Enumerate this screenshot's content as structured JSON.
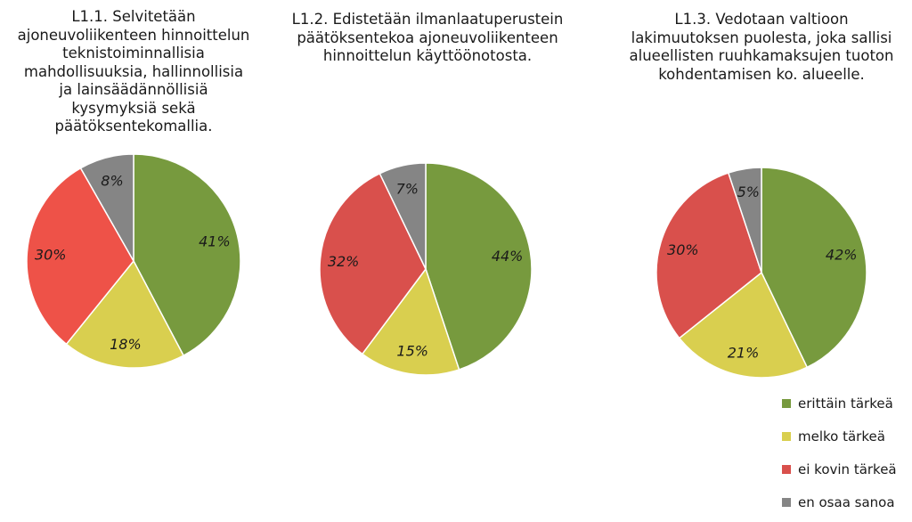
{
  "colors": {
    "erittain_tarkea": "#779a3e",
    "melko_tarkea": "#d9cf4f",
    "ei_kovin_tarkea": "#d9504c",
    "en_osaa_sanoa": "#858585",
    "ei_kovin_tarkea_chart1": "#ee5248"
  },
  "legend": [
    {
      "label": "erittäin tärkeä",
      "color": "#779a3e"
    },
    {
      "label": "melko tärkeä",
      "color": "#d9cf4f"
    },
    {
      "label": "ei kovin tärkeä",
      "color": "#d9504c"
    },
    {
      "label": "en osaa sanoa",
      "color": "#858585"
    }
  ],
  "chart_data": [
    {
      "type": "pie",
      "title_lines": [
        "L1.1. Selvitetään",
        "ajoneuvoliikenteen hinnoittelun",
        "teknistoiminnallisia",
        "mahdollisuuksia, hallinnollisia",
        "ja lainsäädännöllisiä",
        "kysymyksiä sekä",
        "päätöksentekomallia."
      ],
      "categories": [
        "erittäin tärkeä",
        "melko tärkeä",
        "ei kovin tärkeä",
        "en osaa sanoa"
      ],
      "values": [
        41,
        18,
        30,
        8
      ],
      "labels": [
        "41%",
        "18%",
        "30%",
        "8%"
      ]
    },
    {
      "type": "pie",
      "title_lines": [
        "L1.2. Edistetään ilmanlaatuperustein",
        "päätöksentekoa ajoneuvoliikenteen",
        "hinnoittelun käyttöönotosta."
      ],
      "categories": [
        "erittäin tärkeä",
        "melko tärkeä",
        "ei kovin tärkeä",
        "en osaa sanoa"
      ],
      "values": [
        44,
        15,
        32,
        7
      ],
      "labels": [
        "44%",
        "15%",
        "32%",
        "7%"
      ]
    },
    {
      "type": "pie",
      "title_lines": [
        "L1.3. Vedotaan valtioon",
        "lakimuutoksen puolesta, joka sallisi",
        "alueellisten ruuhkamaksujen tuoton",
        "kohdentamisen ko. alueelle."
      ],
      "categories": [
        "erittäin tärkeä",
        "melko tärkeä",
        "ei kovin tärkeä",
        "en osaa sanoa"
      ],
      "values": [
        42,
        21,
        30,
        5
      ],
      "labels": [
        "42%",
        "21%",
        "30%",
        "5%"
      ]
    }
  ]
}
